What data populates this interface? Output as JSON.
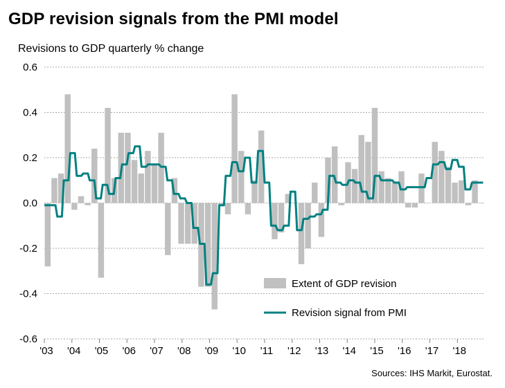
{
  "title": "GDP revision signals from the PMI model",
  "source": "Sources: IHS Markit, Eurostat.",
  "chart_data": {
    "type": "bar+line",
    "title": "GDP revision signals from the PMI model",
    "subtitle": "Revisions to GDP quarterly % change",
    "ylabel": "Revisions to GDP quarterly % change",
    "xlabel": "",
    "ylim": [
      -0.6,
      0.6
    ],
    "yticks": [
      "0.6",
      "0.4",
      "0.2",
      "0.0",
      "-0.2",
      "-0.4",
      "-0.6"
    ],
    "xticks": [
      "'03",
      "'04",
      "'05",
      "'06",
      "'07",
      "'08",
      "'09",
      "'10",
      "'11",
      "'12",
      "'13",
      "'14",
      "'15",
      "'16",
      "'17",
      "'18"
    ],
    "grid": true,
    "legend_position": "bottom-right",
    "colors": {
      "bars": "#c0c0c0",
      "line": "#008080"
    },
    "series": [
      {
        "name": "Extent of GDP revision",
        "kind": "bar",
        "values": [
          -0.28,
          0.11,
          0.13,
          0.48,
          -0.03,
          0.03,
          -0.01,
          0.24,
          -0.33,
          0.42,
          0.11,
          0.31,
          0.31,
          0.19,
          0.13,
          0.23,
          0.17,
          0.31,
          -0.23,
          0.11,
          -0.18,
          -0.18,
          -0.18,
          -0.37,
          -0.37,
          -0.47,
          -0.01,
          -0.05,
          0.48,
          0.23,
          -0.05,
          0.1,
          0.32,
          0.0,
          -0.16,
          -0.13,
          0.04,
          0.0,
          -0.27,
          -0.2,
          0.09,
          -0.15,
          0.2,
          0.25,
          -0.01,
          0.18,
          0.15,
          0.3,
          0.27,
          0.42,
          0.14,
          0.11,
          0.09,
          0.14,
          -0.02,
          -0.02,
          0.13,
          0.0,
          0.27,
          0.23,
          0.16,
          0.09,
          0.1,
          -0.01,
          0.1,
          0.0
        ]
      },
      {
        "name": "Revision signal from PMI",
        "kind": "line",
        "values": [
          -0.01,
          -0.01,
          -0.06,
          0.1,
          0.22,
          0.12,
          0.13,
          0.1,
          0.02,
          0.08,
          0.04,
          0.11,
          0.17,
          0.22,
          0.25,
          0.16,
          0.17,
          0.17,
          0.16,
          0.1,
          0.04,
          0.02,
          0.0,
          -0.11,
          -0.18,
          -0.36,
          -0.31,
          -0.01,
          0.12,
          0.18,
          0.14,
          0.2,
          0.09,
          0.23,
          0.09,
          -0.1,
          -0.12,
          -0.1,
          0.05,
          -0.12,
          -0.07,
          -0.06,
          -0.05,
          -0.03,
          0.12,
          0.09,
          0.08,
          0.1,
          0.09,
          0.05,
          0.02,
          0.12,
          0.1,
          0.1,
          0.09,
          0.06,
          0.07,
          0.07,
          0.07,
          0.11,
          0.17,
          0.18,
          0.15,
          0.19,
          0.16,
          0.06,
          0.09,
          0.09
        ]
      }
    ]
  }
}
